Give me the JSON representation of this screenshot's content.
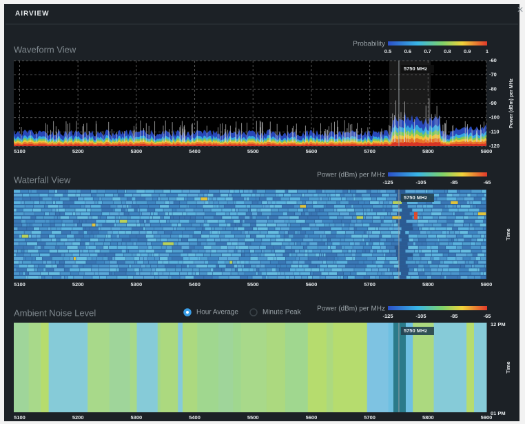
{
  "header": {
    "title": "AIRVIEW",
    "close": "×"
  },
  "panels": [
    {
      "title": "Waveform View",
      "legend": {
        "label": "Probability",
        "ticks": [
          0.5,
          0.6,
          0.7,
          0.8,
          0.9,
          1
        ],
        "lim": [
          0.5,
          1
        ]
      },
      "xlim": [
        5090,
        5900
      ],
      "xticks": [
        5100,
        5200,
        5300,
        5400,
        5500,
        5600,
        5700,
        5800,
        5900
      ],
      "ylim": [
        -120,
        -60
      ],
      "yticks": [
        -60,
        -70,
        -80,
        -90,
        -100,
        -110,
        -120
      ],
      "ylabel": "Power (dBm) per MHz",
      "marker": {
        "value": 5750,
        "label": "5750 MHz"
      }
    },
    {
      "title": "Waterfall View",
      "legend": {
        "label": "Power (dBm) per MHz",
        "ticks": [
          -125,
          -105,
          -85,
          -65
        ],
        "lim": [
          -125,
          -65
        ]
      },
      "xlim": [
        5090,
        5900
      ],
      "xticks": [
        5100,
        5200,
        5300,
        5400,
        5500,
        5600,
        5700,
        5800,
        5900
      ],
      "ylabel": "Time",
      "marker": {
        "value": 5750,
        "label": "5750 MHz"
      }
    },
    {
      "title": "Ambient Noise Level",
      "options": [
        {
          "label": "Hour Average",
          "selected": true
        },
        {
          "label": "Minute Peak",
          "selected": false
        }
      ],
      "legend": {
        "label": "Power (dBm) per MHz",
        "ticks": [
          -125,
          -105,
          -85,
          -65
        ],
        "lim": [
          -125,
          -65
        ]
      },
      "xlim": [
        5090,
        5900
      ],
      "xticks": [
        5100,
        5200,
        5300,
        5400,
        5500,
        5600,
        5700,
        5800,
        5900
      ],
      "ylabels": [
        "12 PM",
        "01 PM"
      ],
      "ylabel": "Time",
      "marker": {
        "value": 5750,
        "label": "5750 MHz"
      }
    }
  ]
}
